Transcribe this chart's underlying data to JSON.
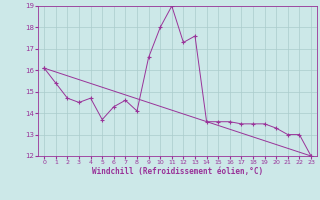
{
  "xlabel": "Windchill (Refroidissement éolien,°C)",
  "bg_color": "#cce8e8",
  "line_color": "#993399",
  "grid_color": "#aacccc",
  "xlim": [
    -0.5,
    23.5
  ],
  "ylim": [
    12,
    19
  ],
  "xticks": [
    0,
    1,
    2,
    3,
    4,
    5,
    6,
    7,
    8,
    9,
    10,
    11,
    12,
    13,
    14,
    15,
    16,
    17,
    18,
    19,
    20,
    21,
    22,
    23
  ],
  "yticks": [
    12,
    13,
    14,
    15,
    16,
    17,
    18,
    19
  ],
  "series1_x": [
    0,
    1,
    2,
    3,
    4,
    5,
    6,
    7,
    8,
    9,
    10,
    11,
    12,
    13,
    14,
    15,
    16,
    17,
    18,
    19,
    20,
    21,
    22,
    23
  ],
  "series1_y": [
    16.1,
    15.4,
    14.7,
    14.5,
    14.7,
    13.7,
    14.3,
    14.6,
    14.1,
    16.6,
    18.0,
    19.0,
    17.3,
    17.6,
    13.6,
    13.6,
    13.6,
    13.5,
    13.5,
    13.5,
    13.3,
    13.0,
    13.0,
    12.0
  ],
  "series2_x": [
    0,
    23
  ],
  "series2_y": [
    16.1,
    12.0
  ],
  "figwidth": 3.2,
  "figheight": 2.0,
  "dpi": 100
}
